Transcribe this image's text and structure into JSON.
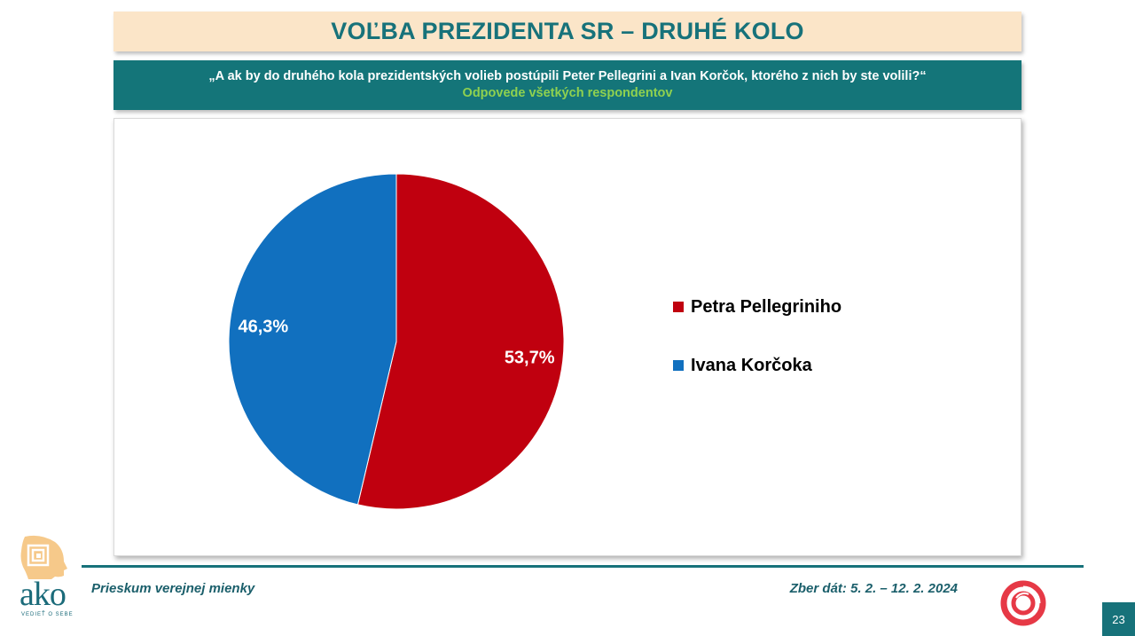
{
  "header": {
    "title": "VOĽBA PREZIDENTA SR – DRUHÉ KOLO",
    "question": "„A ak by do druhého kola prezidentských volieb postúpili Peter Pellegrini a Ivan Korčok, ktorého z nich by ste volili?“",
    "subtitle": "Odpovede všetkých respondentov"
  },
  "chart_data": {
    "type": "pie",
    "categories": [
      "Petra Pellegriniho",
      "Ivana Korčoka"
    ],
    "values": [
      53.7,
      46.3
    ],
    "data_labels": [
      "53,7%",
      "46,3%"
    ],
    "colors": [
      "#c0000f",
      "#1170bf"
    ],
    "legend_position": "right"
  },
  "footer": {
    "left_text": "Prieskum verejnej mienky",
    "right_text": "Zber dát: 5. 2. – 12. 2. 2024",
    "page_number": "23"
  },
  "logo": {
    "name": "ako",
    "tagline": "VEDIEŤ O SEBE"
  },
  "colors": {
    "teal": "#17727a",
    "title_bg": "#fbe5c8",
    "subtitle_green": "#8fd14f",
    "red": "#c0000f",
    "blue": "#1170bf"
  }
}
